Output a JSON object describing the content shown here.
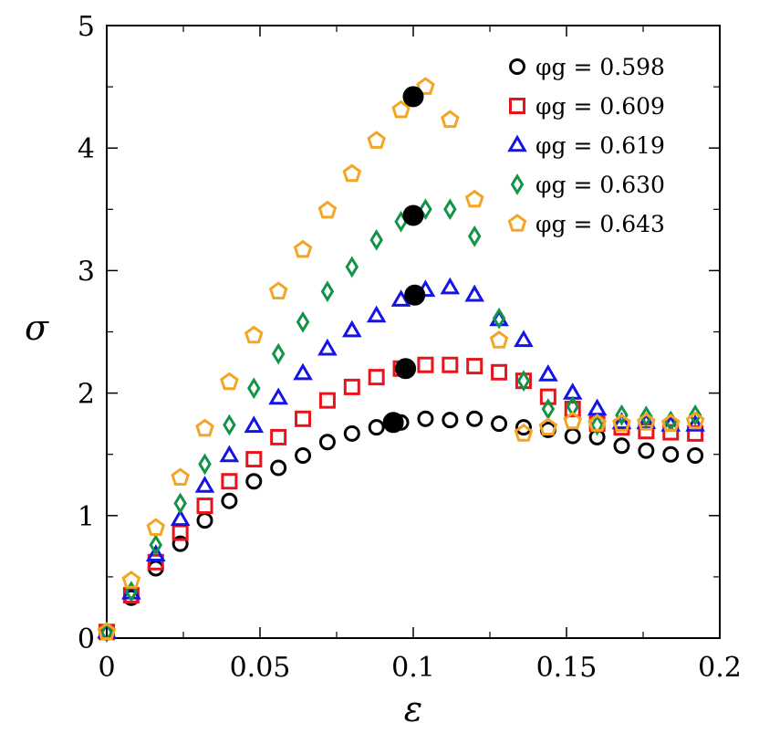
{
  "chart_data": {
    "type": "scatter",
    "xlabel": "ε",
    "ylabel": "σ",
    "xlim": [
      0,
      0.2
    ],
    "ylim": [
      0,
      5
    ],
    "xticks": [
      0,
      0.05,
      0.1,
      0.15,
      0.2
    ],
    "xtick_labels": [
      "0",
      "0.05",
      "0.1",
      "0.15",
      "0.2"
    ],
    "yticks": [
      0,
      1,
      2,
      3,
      4,
      5
    ],
    "ytick_labels": [
      "0",
      "1",
      "2",
      "3",
      "4",
      "5"
    ],
    "legend_position": "top-right",
    "grid": false,
    "series": [
      {
        "name": "φg = 0.598",
        "marker": "circle",
        "color": "#000000",
        "x": [
          0,
          0.008,
          0.016,
          0.024,
          0.032,
          0.04,
          0.048,
          0.056,
          0.064,
          0.072,
          0.08,
          0.088,
          0.096,
          0.104,
          0.112,
          0.12,
          0.128,
          0.136,
          0.144,
          0.152,
          0.16,
          0.168,
          0.176,
          0.184,
          0.192
        ],
        "y": [
          0.05,
          0.33,
          0.57,
          0.77,
          0.96,
          1.12,
          1.28,
          1.39,
          1.49,
          1.6,
          1.67,
          1.72,
          1.76,
          1.79,
          1.78,
          1.79,
          1.75,
          1.72,
          1.7,
          1.65,
          1.64,
          1.57,
          1.53,
          1.5,
          1.49
        ]
      },
      {
        "name": "φg = 0.609",
        "marker": "square",
        "color": "#e8141c",
        "x": [
          0,
          0.008,
          0.016,
          0.024,
          0.032,
          0.04,
          0.048,
          0.056,
          0.064,
          0.072,
          0.08,
          0.088,
          0.096,
          0.104,
          0.112,
          0.12,
          0.128,
          0.136,
          0.144,
          0.152,
          0.16,
          0.168,
          0.176,
          0.184,
          0.192
        ],
        "y": [
          0.05,
          0.35,
          0.62,
          0.86,
          1.08,
          1.28,
          1.46,
          1.64,
          1.79,
          1.94,
          2.05,
          2.13,
          2.2,
          2.23,
          2.23,
          2.22,
          2.17,
          2.1,
          1.97,
          1.87,
          1.75,
          1.72,
          1.69,
          1.68,
          1.67
        ]
      },
      {
        "name": "φg = 0.619",
        "marker": "triangle",
        "color": "#1414e6",
        "x": [
          0,
          0.008,
          0.016,
          0.024,
          0.032,
          0.04,
          0.048,
          0.056,
          0.064,
          0.072,
          0.08,
          0.088,
          0.096,
          0.104,
          0.112,
          0.12,
          0.128,
          0.136,
          0.144,
          0.152,
          0.16,
          0.168,
          0.176,
          0.184,
          0.192
        ],
        "y": [
          0.05,
          0.37,
          0.68,
          0.97,
          1.24,
          1.49,
          1.73,
          1.96,
          2.16,
          2.36,
          2.51,
          2.63,
          2.76,
          2.84,
          2.86,
          2.8,
          2.6,
          2.43,
          2.15,
          2.0,
          1.87,
          1.76,
          1.76,
          1.74,
          1.74
        ]
      },
      {
        "name": "φg = 0.630",
        "marker": "diamond",
        "color": "#129447",
        "x": [
          0,
          0.008,
          0.016,
          0.024,
          0.032,
          0.04,
          0.048,
          0.056,
          0.064,
          0.072,
          0.08,
          0.088,
          0.096,
          0.104,
          0.112,
          0.12,
          0.128,
          0.136,
          0.144,
          0.152,
          0.16,
          0.168,
          0.176,
          0.184,
          0.192
        ],
        "y": [
          0.05,
          0.38,
          0.76,
          1.1,
          1.42,
          1.74,
          2.04,
          2.32,
          2.58,
          2.83,
          3.03,
          3.25,
          3.4,
          3.5,
          3.5,
          3.28,
          2.61,
          2.1,
          1.87,
          1.89,
          1.74,
          1.82,
          1.81,
          1.77,
          1.82
        ]
      },
      {
        "name": "φg = 0.643",
        "marker": "pentagon",
        "color": "#f5a423",
        "x": [
          0,
          0.008,
          0.016,
          0.024,
          0.032,
          0.04,
          0.048,
          0.056,
          0.064,
          0.072,
          0.08,
          0.088,
          0.096,
          0.104,
          0.112,
          0.12,
          0.128,
          0.136,
          0.144,
          0.152,
          0.16,
          0.168,
          0.176,
          0.184,
          0.192
        ],
        "y": [
          0.05,
          0.47,
          0.9,
          1.31,
          1.71,
          2.09,
          2.47,
          2.83,
          3.17,
          3.49,
          3.79,
          4.06,
          4.31,
          4.5,
          4.23,
          3.58,
          2.43,
          1.67,
          1.72,
          1.77,
          1.75,
          1.75,
          1.76,
          1.75,
          1.77
        ]
      }
    ],
    "highlighted_points": {
      "marker": "filled-circle",
      "color": "#000000",
      "x": [
        0.0935,
        0.0975,
        0.1005,
        0.1,
        0.1
      ],
      "y": [
        1.76,
        2.2,
        2.8,
        3.45,
        4.42
      ]
    }
  }
}
